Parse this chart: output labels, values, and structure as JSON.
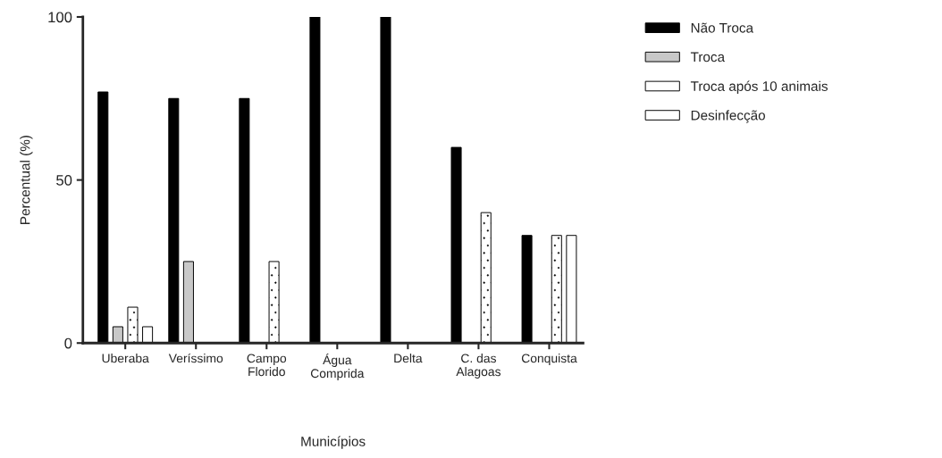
{
  "chart_data": {
    "type": "bar",
    "xlabel": "Municípios",
    "ylabel": "Percentual (%)",
    "categories": [
      "Uberaba",
      "Veríssimo",
      "Campo\nFlorido",
      "Água\nComprida",
      "Delta",
      "C. das\nAlagoas",
      "Conquista"
    ],
    "series": [
      {
        "name": "Não Troca",
        "color": "#000000",
        "values": [
          77,
          75,
          75,
          100,
          100,
          60,
          33
        ]
      },
      {
        "name": "Troca",
        "color": "#c8c8c8",
        "values": [
          5,
          25,
          null,
          null,
          null,
          null,
          null
        ]
      },
      {
        "name": "Troca após 10 animais",
        "color": "#ffffff",
        "values": [
          11,
          null,
          25,
          null,
          null,
          40,
          33
        ]
      },
      {
        "name": "Desinfecção",
        "color": "#ffffff",
        "values": [
          5,
          null,
          null,
          null,
          null,
          null,
          33
        ]
      }
    ],
    "ylim": [
      0,
      100
    ],
    "yticks": [
      0,
      50,
      100
    ],
    "grid": false,
    "legend": "top right"
  }
}
